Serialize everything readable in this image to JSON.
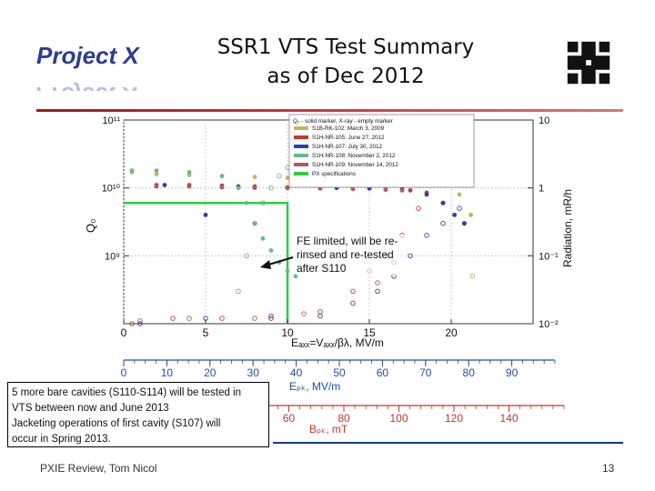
{
  "slide": {
    "logo_top": "Project X",
    "title_line1": "SSR1 VTS Test Summary",
    "title_line2": "as of Dec 2012",
    "fe_note": "FE limited, will be re-rinsed and re-tested after S110",
    "notes": [
      "5 more bare cavities (S110-S114) will be tested in",
      "VTS between now and June 2013",
      "Jacketing operations of first cavity (S107) will",
      "occur in Spring 2013."
    ],
    "footer": "PXIE Review, Tom Nicol",
    "page_number": "13",
    "accent": "#c9302c",
    "logo_blue": "#2c3e8f",
    "fermi_icon": "fermilab-logo-icon"
  },
  "chart_data": {
    "type": "scatter",
    "x": {
      "label": "Eₐₓₓ=Vₐₓₓ/βλ, MV/m",
      "lim": [
        0,
        25
      ],
      "ticks": [
        "0",
        "5",
        "10",
        "15",
        "20"
      ]
    },
    "y_left": {
      "label": "Q₀",
      "scale": "log",
      "lim": [
        100000000.0,
        100000000000.0
      ],
      "ticks": [
        "10¹¹",
        "10¹⁰",
        "10⁹"
      ]
    },
    "y_right": {
      "label": "Radiation, mR/h",
      "scale": "log",
      "lim": [
        0.01,
        10
      ],
      "ticks": [
        "10",
        "1",
        "10⁻¹",
        "10⁻²"
      ]
    },
    "axis_epk": {
      "label": "Eₚₖ, MV/m",
      "ticks": [
        "0",
        "10",
        "20",
        "30",
        "40",
        "50",
        "60",
        "70",
        "80",
        "90"
      ],
      "lim": [
        0,
        100
      ],
      "color": "#1f4fa8"
    },
    "axis_bpk": {
      "label": "Bₚₖ, mT",
      "ticks": [
        "60",
        "80",
        "100",
        "120",
        "140"
      ],
      "lim": [
        0,
        160
      ],
      "color": "#c0392b"
    },
    "legend_title": "Q₀ - solid marker, X-ray - empty marker",
    "legend_position": "top-right",
    "grid": true,
    "series": [
      {
        "name": "S1B-RK-102: March 3, 2009",
        "color": "#c9b458",
        "q0": [
          [
            0.5,
            17000000000.0
          ],
          [
            2,
            16000000000.0
          ],
          [
            4,
            15500000000.0
          ],
          [
            6,
            15000000000.0
          ],
          [
            8,
            14500000000.0
          ],
          [
            10,
            14000000000.0
          ],
          [
            12,
            13500000000.0
          ],
          [
            14,
            13000000000.0
          ],
          [
            16,
            12500000000.0
          ],
          [
            18,
            12000000000.0
          ],
          [
            19.5,
            11000000000.0
          ],
          [
            20.5,
            8000000000.0
          ],
          [
            21.2,
            4000000000.0
          ]
        ],
        "xray": [
          [
            19.5,
            0.6
          ],
          [
            20,
            1.5
          ],
          [
            20.5,
            3
          ],
          [
            21,
            4
          ],
          [
            21.2,
            2
          ],
          [
            20.8,
            0.3
          ],
          [
            21.3,
            0.05
          ]
        ]
      },
      {
        "name": "S1H-NR-105: June 27, 2012",
        "color": "#c0392b",
        "q0": [
          [
            2,
            11000000000.0
          ],
          [
            4,
            11000000000.0
          ],
          [
            6,
            10800000000.0
          ],
          [
            8,
            10500000000.0
          ],
          [
            10,
            10200000000.0
          ],
          [
            12,
            10000000000.0
          ],
          [
            14,
            9800000000.0
          ],
          [
            16,
            9500000000.0
          ],
          [
            17.5,
            9200000000.0
          ],
          [
            18.5,
            8500000000.0
          ]
        ],
        "xray": [
          [
            0.5,
            0.01
          ],
          [
            3,
            0.012
          ],
          [
            6,
            0.012
          ],
          [
            9,
            0.013
          ],
          [
            12,
            0.015
          ],
          [
            14,
            0.03
          ],
          [
            15,
            0.06
          ],
          [
            16,
            0.1
          ],
          [
            17,
            0.2
          ],
          [
            18,
            0.5
          ]
        ]
      },
      {
        "name": "S1H-NR-107: July 30, 2012",
        "color": "#2a3faf",
        "q0": [
          [
            2.5,
            11000000000.0
          ],
          [
            5,
            4000000000.0
          ],
          [
            7,
            10500000000.0
          ],
          [
            10,
            10000000000.0
          ],
          [
            13,
            10000000000.0
          ],
          [
            15,
            9800000000.0
          ],
          [
            17,
            9500000000.0
          ],
          [
            18.5,
            8000000000.0
          ],
          [
            19.5,
            6000000000.0
          ],
          [
            20.2,
            4000000000.0
          ],
          [
            20.8,
            3000000000.0
          ]
        ],
        "xray": [
          [
            1,
            0.01
          ],
          [
            5,
            0.012
          ],
          [
            9,
            0.012
          ],
          [
            12,
            0.013
          ],
          [
            14,
            0.02
          ],
          [
            15.5,
            0.03
          ],
          [
            16.5,
            0.05
          ],
          [
            17.5,
            0.1
          ],
          [
            18.5,
            0.2
          ],
          [
            19.5,
            0.3
          ],
          [
            20.5,
            0.5
          ]
        ]
      },
      {
        "name": "S1H-NR-108: November 2, 2012",
        "color": "#69b894",
        "q0": [
          [
            0.5,
            18000000000.0
          ],
          [
            2,
            18000000000.0
          ],
          [
            4,
            17000000000.0
          ],
          [
            6,
            15000000000.0
          ],
          [
            7,
            10000000000.0
          ],
          [
            7.5,
            6000000000.0
          ],
          [
            8,
            3000000000.0
          ],
          [
            8.5,
            1800000000.0
          ],
          [
            9,
            1200000000.0
          ],
          [
            9.5,
            800000000.0
          ],
          [
            10,
            600000000.0
          ],
          [
            10.5,
            500000000.0
          ]
        ],
        "xray": [
          [
            7,
            0.03
          ],
          [
            7.5,
            0.1
          ],
          [
            8,
            0.3
          ],
          [
            8.5,
            0.6
          ],
          [
            9,
            1
          ],
          [
            9.5,
            1.5
          ],
          [
            10,
            2
          ],
          [
            10.5,
            1.8
          ]
        ]
      },
      {
        "name": "S1H-NR-109: November 14, 2012",
        "color": "#b05a68",
        "q0": [
          [
            2,
            10500000000.0
          ],
          [
            4,
            10500000000.0
          ],
          [
            6,
            10200000000.0
          ],
          [
            8,
            10000000000.0
          ],
          [
            10,
            10000000000.0
          ],
          [
            12,
            9800000000.0
          ],
          [
            14,
            9600000000.0
          ],
          [
            16,
            9400000000.0
          ],
          [
            17,
            9200000000.0
          ]
        ],
        "xray": [
          [
            1,
            0.011
          ],
          [
            4,
            0.012
          ],
          [
            8,
            0.012
          ],
          [
            11,
            0.014
          ],
          [
            14,
            0.02
          ],
          [
            15.5,
            0.04
          ],
          [
            16.5,
            0.08
          ]
        ]
      }
    ],
    "spec": {
      "name": "PX specifications",
      "color": "#2ecc40",
      "points": [
        [
          0,
          6000000000.0
        ],
        [
          10,
          6000000000.0
        ],
        [
          10,
          100000000.0
        ]
      ]
    }
  }
}
